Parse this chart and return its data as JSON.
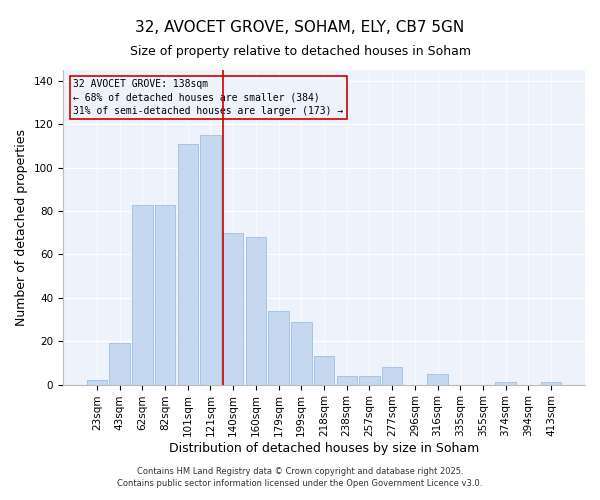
{
  "title": "32, AVOCET GROVE, SOHAM, ELY, CB7 5GN",
  "subtitle": "Size of property relative to detached houses in Soham",
  "xlabel": "Distribution of detached houses by size in Soham",
  "ylabel": "Number of detached properties",
  "categories": [
    "23sqm",
    "43sqm",
    "62sqm",
    "82sqm",
    "101sqm",
    "121sqm",
    "140sqm",
    "160sqm",
    "179sqm",
    "199sqm",
    "218sqm",
    "238sqm",
    "257sqm",
    "277sqm",
    "296sqm",
    "316sqm",
    "335sqm",
    "355sqm",
    "374sqm",
    "394sqm",
    "413sqm"
  ],
  "values": [
    2,
    19,
    83,
    83,
    111,
    115,
    70,
    68,
    34,
    29,
    13,
    4,
    4,
    8,
    0,
    5,
    0,
    0,
    1,
    0,
    1
  ],
  "bar_color": "#c5d8f0",
  "bar_edge_color": "#9bbfe0",
  "vline_color": "#cc0000",
  "vline_index": 6,
  "annotation_text": "32 AVOCET GROVE: 138sqm\n← 68% of detached houses are smaller (384)\n31% of semi-detached houses are larger (173) →",
  "ylim": [
    0,
    145
  ],
  "yticks": [
    0,
    20,
    40,
    60,
    80,
    100,
    120,
    140
  ],
  "footer1": "Contains HM Land Registry data © Crown copyright and database right 2025.",
  "footer2": "Contains public sector information licensed under the Open Government Licence v3.0.",
  "bg_color": "#ffffff",
  "plot_bg_color": "#eef2fb",
  "title_fontsize": 11,
  "axis_fontsize": 9,
  "tick_fontsize": 7.5,
  "annot_fontsize": 7,
  "footer_fontsize": 6
}
